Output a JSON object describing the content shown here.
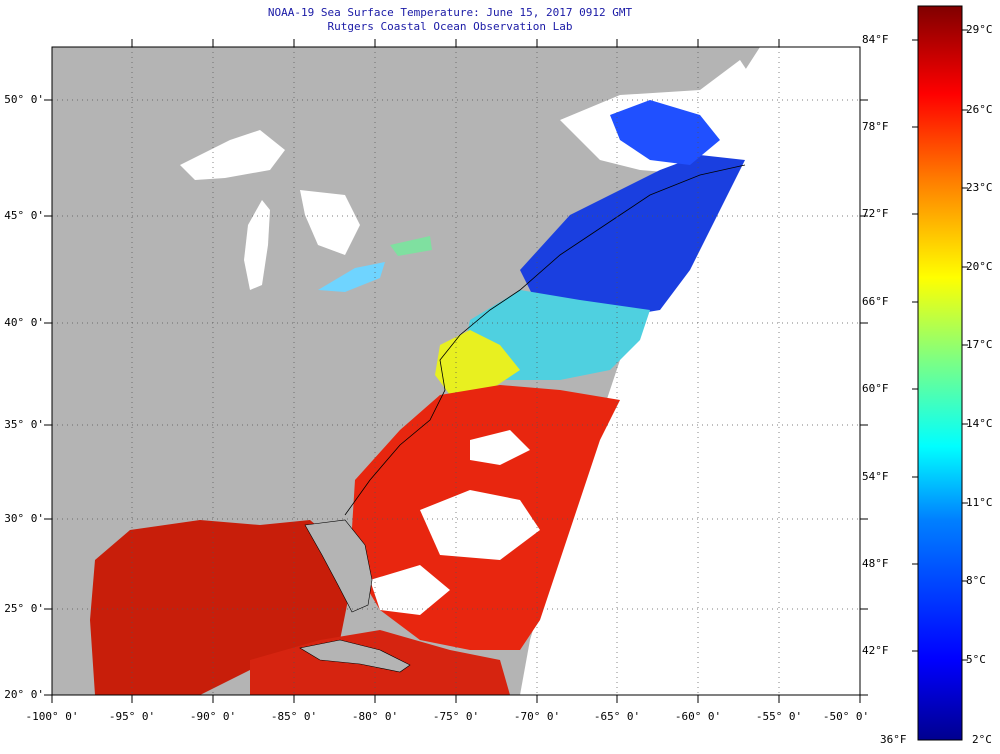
{
  "title": {
    "line1": "NOAA-19 Sea Surface Temperature:  June 15, 2017 0912 GMT",
    "line2": "Rutgers Coastal Ocean Observation Lab"
  },
  "axes": {
    "lat_labels": [
      "50° 0'",
      "45° 0'",
      "40° 0'",
      "35° 0'",
      "30° 0'",
      "25° 0'",
      "20° 0'"
    ],
    "lon_labels": [
      "-100° 0'",
      "-95° 0'",
      "-90° 0'",
      "-85° 0'",
      "-80° 0'",
      "-75° 0'",
      "-70° 0'",
      "-65° 0'",
      "-60° 0'",
      "-55° 0'",
      "-50° 0'"
    ],
    "lat_range": [
      20,
      52.3
    ],
    "lon_range": [
      -100,
      -50
    ]
  },
  "colorbar": {
    "fahrenheit_labels": [
      "84°F",
      "78°F",
      "72°F",
      "66°F",
      "60°F",
      "54°F",
      "48°F",
      "42°F",
      "36°F"
    ],
    "celsius_labels": [
      "29°C",
      "26°C",
      "23°C",
      "20°C",
      "17°C",
      "14°C",
      "11°C",
      "8°C",
      "5°C",
      "2°C"
    ],
    "range_c": [
      2,
      30
    ],
    "colors": [
      "#00008f",
      "#0000ff",
      "#0080ff",
      "#00ffff",
      "#80ff80",
      "#ffff00",
      "#ff8000",
      "#ff0000",
      "#800000"
    ]
  },
  "colors": {
    "land": "#b4b4b4",
    "no_data": "#ffffff",
    "coastline": "#000000",
    "title_text": "#1a1aa6"
  }
}
